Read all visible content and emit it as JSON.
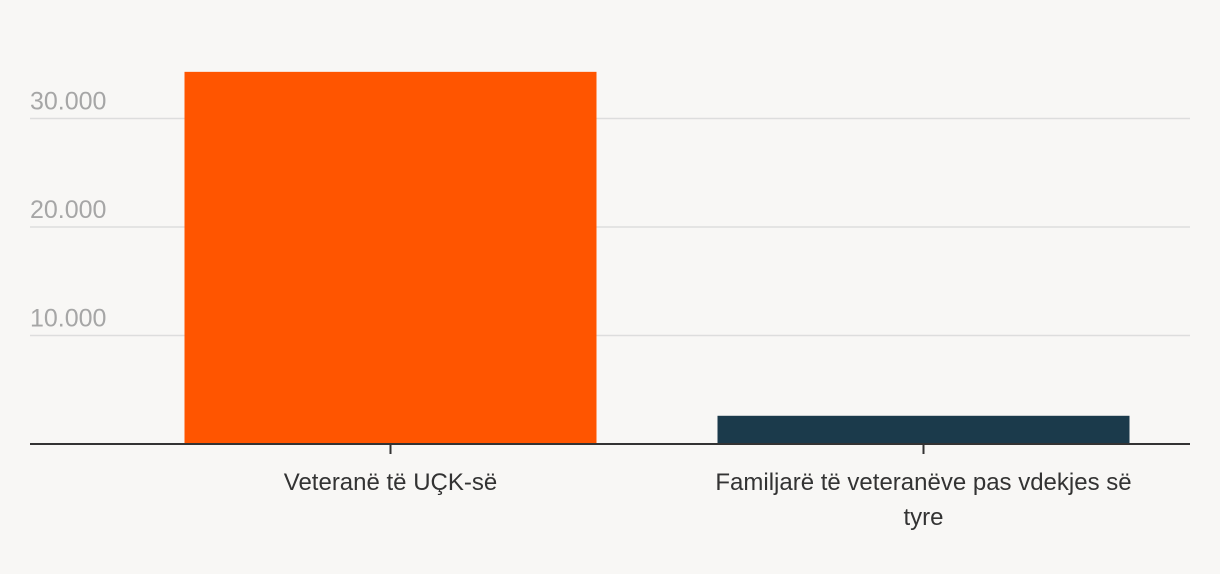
{
  "chart_data": {
    "type": "bar",
    "title": "",
    "xlabel": "",
    "ylabel": "",
    "categories": [
      [
        "Veteranë të UÇK-së"
      ],
      [
        "Familjarë të veteranëve pas vdekjes së",
        "tyre"
      ]
    ],
    "values": [
      34300,
      2600
    ],
    "colors": [
      "#ff5500",
      "#1b3a4b"
    ],
    "ylim": [
      0,
      40000
    ],
    "yticks": [
      10000,
      20000,
      30000
    ],
    "ytick_labels": [
      "10.000",
      "20.000",
      "30.000"
    ],
    "grid": true
  }
}
